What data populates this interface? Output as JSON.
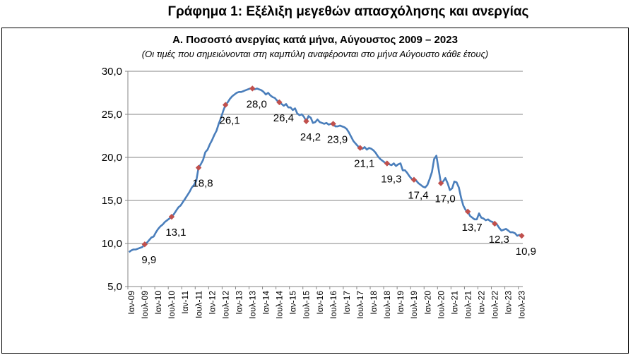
{
  "page_title": "Γράφημα 1: Εξέλιξη μεγεθών απασχόλησης και ανεργίας",
  "chart_data": {
    "type": "line",
    "title": "Α. Ποσοστό ανεργίας κατά μήνα, Αύγουστος 2009 – 2023",
    "subtitle": "(Οι τιμές που σημειώνονται στη καμπύλη αναφέρονται στο μήνα Αύγουστο κάθε έτους)",
    "xlabel": "",
    "ylabel": "",
    "ylim": [
      5,
      30
    ],
    "yticks": [
      5,
      10,
      15,
      20,
      25,
      30
    ],
    "ytick_labels": [
      "5,0",
      "10,0",
      "15,0",
      "20,0",
      "25,0",
      "30,0"
    ],
    "grid": true,
    "line_color": "#4a7ebb",
    "marker_color": "#c0504d",
    "x_start": "2009-01",
    "x_end": "2023-08",
    "x_tick_labels": [
      "Ιαν-09",
      "Ιουλ-09",
      "Ιαν-10",
      "Ιουλ-10",
      "Ιαν-11",
      "Ιουλ-11",
      "Ιαν-12",
      "Ιουλ-12",
      "Ιαν-13",
      "Ιουλ-13",
      "Ιαν-14",
      "Ιουλ-14",
      "Ιαν-15",
      "Ιουλ-15",
      "Ιαν-16",
      "Ιουλ-16",
      "Ιαν-17",
      "Ιουλ-17",
      "Ιαν-18",
      "Ιουλ-18",
      "Ιαν-19",
      "Ιουλ-19",
      "Ιαν-20",
      "Ιουλ-20",
      "Ιαν-21",
      "Ιουλ-21",
      "Ιαν-22",
      "Ιουλ-22",
      "Ιαν-23",
      "Ιουλ-23"
    ],
    "series": [
      {
        "values": [
          9.0,
          9.2,
          9.3,
          9.3,
          9.4,
          9.5,
          9.6,
          9.9,
          10.1,
          10.4,
          10.7,
          10.8,
          11.3,
          11.7,
          12.0,
          12.2,
          12.5,
          12.7,
          12.9,
          13.1,
          13.4,
          13.8,
          14.2,
          14.4,
          14.8,
          15.2,
          15.6,
          16.0,
          16.5,
          16.8,
          17.3,
          18.8,
          19.2,
          19.7,
          20.6,
          20.9,
          21.5,
          22.0,
          22.6,
          23.1,
          23.9,
          24.6,
          25.4,
          26.1,
          26.4,
          26.8,
          27.1,
          27.3,
          27.5,
          27.6,
          27.6,
          27.7,
          27.8,
          27.9,
          28.0,
          28.0,
          27.9,
          28.0,
          27.9,
          27.8,
          27.6,
          27.3,
          27.5,
          27.2,
          27.0,
          26.9,
          26.6,
          26.4,
          26.2,
          26.0,
          26.2,
          25.8,
          25.8,
          25.5,
          25.7,
          25.1,
          24.9,
          25.0,
          24.7,
          24.2,
          24.8,
          24.6,
          24.0,
          24.1,
          24.4,
          24.1,
          24.0,
          23.9,
          24.0,
          23.8,
          23.9,
          23.9,
          23.6,
          23.6,
          23.7,
          23.6,
          23.5,
          23.3,
          22.9,
          22.4,
          21.9,
          21.6,
          21.3,
          21.1,
          21.0,
          21.2,
          20.9,
          21.1,
          21.0,
          20.8,
          20.5,
          20.1,
          19.8,
          19.6,
          19.4,
          19.3,
          19.2,
          19.1,
          19.3,
          19.0,
          19.2,
          19.3,
          18.5,
          18.5,
          18.2,
          17.8,
          17.5,
          17.4,
          17.3,
          17.0,
          16.8,
          16.6,
          16.5,
          16.8,
          17.5,
          18.3,
          19.8,
          20.2,
          18.6,
          17.0,
          17.2,
          17.6,
          17.0,
          16.2,
          16.4,
          17.2,
          17.1,
          16.5,
          15.3,
          14.4,
          13.9,
          13.7,
          13.2,
          13.0,
          12.8,
          12.8,
          13.5,
          13.0,
          12.9,
          12.7,
          12.8,
          12.6,
          12.5,
          12.3,
          12.2,
          11.8,
          11.5,
          11.6,
          11.7,
          11.5,
          11.3,
          11.3,
          11.2,
          10.9,
          11.0,
          10.9
        ],
        "markers": [
          {
            "month_index": 7,
            "value": 9.9,
            "label": "9,9"
          },
          {
            "month_index": 19,
            "value": 13.1,
            "label": "13,1"
          },
          {
            "month_index": 31,
            "value": 18.8,
            "label": "18,8"
          },
          {
            "month_index": 43,
            "value": 26.1,
            "label": "26,1"
          },
          {
            "month_index": 55,
            "value": 28.0,
            "label": "28,0"
          },
          {
            "month_index": 67,
            "value": 26.4,
            "label": "26,4"
          },
          {
            "month_index": 79,
            "value": 24.2,
            "label": "24,2"
          },
          {
            "month_index": 91,
            "value": 23.9,
            "label": "23,9"
          },
          {
            "month_index": 103,
            "value": 21.1,
            "label": "21,1"
          },
          {
            "month_index": 115,
            "value": 19.3,
            "label": "19,3"
          },
          {
            "month_index": 127,
            "value": 17.4,
            "label": "17,4"
          },
          {
            "month_index": 139,
            "value": 17.0,
            "label": "17,0"
          },
          {
            "month_index": 151,
            "value": 13.7,
            "label": "13,7"
          },
          {
            "month_index": 163,
            "value": 12.3,
            "label": "12,3"
          },
          {
            "month_index": 175,
            "value": 10.9,
            "label": "10,9"
          }
        ]
      }
    ]
  }
}
